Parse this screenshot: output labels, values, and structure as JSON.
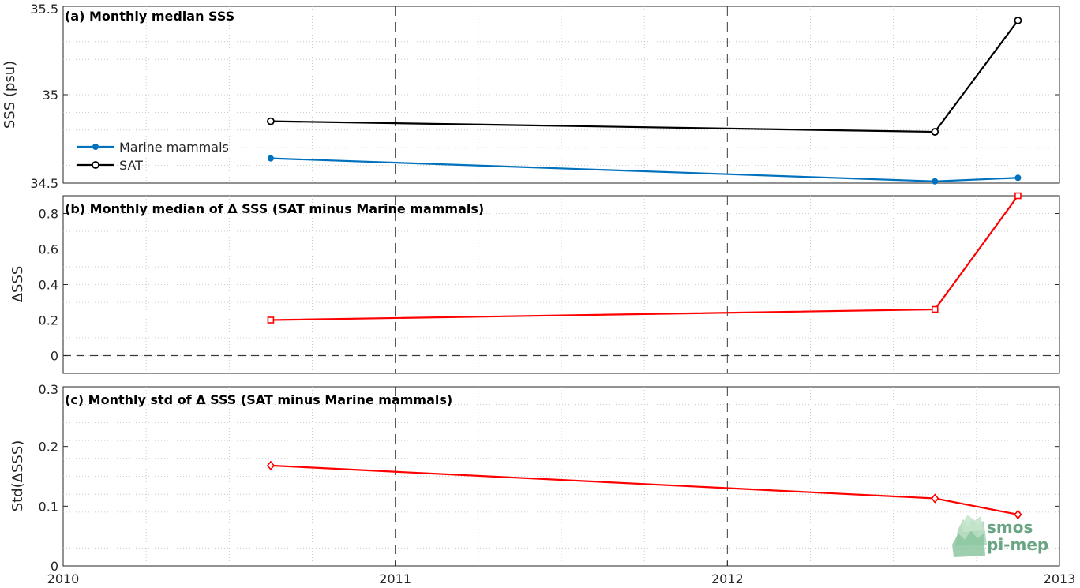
{
  "chart_data": [
    {
      "type": "line",
      "title": "(a) Monthly median SSS",
      "ylabel": "SSS (psu)",
      "xlim": [
        2010,
        2013
      ],
      "ylim": [
        34.5,
        35.5
      ],
      "xticks": [
        "2010",
        "2011",
        "2012",
        "2013"
      ],
      "yticks": [
        "34.5",
        "35",
        "35.5"
      ],
      "grid": true,
      "legend_position": "left",
      "series": [
        {
          "name": "Marine mammals",
          "color": "#0072bd",
          "marker": "filled-circle",
          "x": [
            2010.625,
            2012.625,
            2012.875
          ],
          "y": [
            34.64,
            34.51,
            34.53
          ]
        },
        {
          "name": "SAT",
          "color": "#000000",
          "marker": "open-circle",
          "x": [
            2010.625,
            2012.625,
            2012.875
          ],
          "y": [
            34.85,
            34.79,
            35.42
          ]
        }
      ]
    },
    {
      "type": "line",
      "title": "(b) Monthly median of Δ SSS (SAT minus Marine mammals)",
      "ylabel": "ΔSSS",
      "xlim": [
        2010,
        2013
      ],
      "ylim": [
        -0.1,
        0.9
      ],
      "yticks": [
        "0",
        "0.2",
        "0.4",
        "0.6",
        "0.8"
      ],
      "ytick_values": [
        0,
        0.2,
        0.4,
        0.6,
        0.8
      ],
      "grid": true,
      "zero_line": true,
      "series": [
        {
          "color": "#ff0000",
          "marker": "open-square",
          "x": [
            2010.625,
            2012.625,
            2012.875
          ],
          "y": [
            0.2,
            0.26,
            0.9
          ]
        }
      ]
    },
    {
      "type": "line",
      "title": "(c) Monthly std of Δ SSS (SAT minus Marine mammals)",
      "ylabel": "Std(ΔSSS)",
      "xlim": [
        2010,
        2013
      ],
      "ylim": [
        0,
        0.3
      ],
      "xticks": [
        "2010",
        "2011",
        "2012",
        "2013"
      ],
      "yticks": [
        "0",
        "0.1",
        "0.2",
        "0.3"
      ],
      "ytick_values": [
        0,
        0.1,
        0.2,
        0.3
      ],
      "grid": true,
      "series": [
        {
          "color": "#ff0000",
          "marker": "open-diamond",
          "x": [
            2010.625,
            2012.625,
            2012.875
          ],
          "y": [
            0.168,
            0.113,
            0.086
          ]
        }
      ]
    }
  ],
  "logo": {
    "line1": "smos",
    "line2": "pi-mep",
    "color": "#6aa583"
  }
}
